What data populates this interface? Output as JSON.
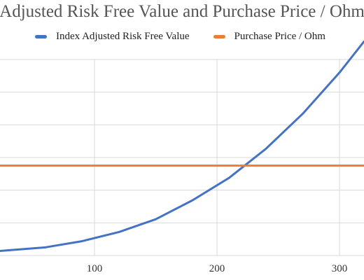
{
  "chart_data": {
    "type": "line",
    "title": "Adjusted Risk Free Value and Purchase Price / Ohm",
    "xlabel": "",
    "ylabel": "",
    "x_ticks": [
      100,
      200,
      300
    ],
    "xlim": [
      0,
      320
    ],
    "ylim": [
      0,
      6
    ],
    "grid": true,
    "legend_position": "top",
    "series": [
      {
        "name": "Index Adjusted Risk Free Value",
        "color": "#4472c4",
        "x": [
          0,
          30,
          60,
          90,
          120,
          150,
          180,
          210,
          240,
          270,
          300,
          320
        ],
        "y": [
          0.07,
          0.16,
          0.25,
          0.44,
          0.72,
          1.11,
          1.69,
          2.38,
          3.27,
          4.34,
          5.6,
          6.55
        ]
      },
      {
        "name": "Purchase Price / Ohm",
        "color": "#ed7d31",
        "x": [
          0,
          320
        ],
        "y": [
          2.75,
          2.75
        ]
      }
    ]
  }
}
